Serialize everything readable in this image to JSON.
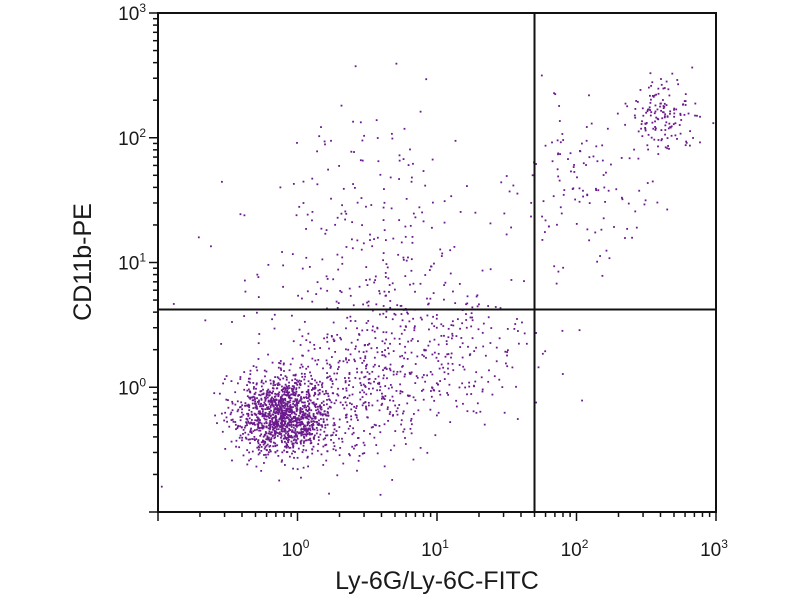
{
  "chart_data": {
    "type": "scatter",
    "title": "",
    "xlabel": "Ly-6G/Ly-6C-FITC",
    "ylabel": "CD11b-PE",
    "xscale": "log",
    "yscale": "log",
    "xlim": [
      0.1,
      1000
    ],
    "ylim": [
      0.1,
      1000
    ],
    "grid": false,
    "x_ticks": [
      {
        "base": "10",
        "exp": "0",
        "value": 1
      },
      {
        "base": "10",
        "exp": "1",
        "value": 10
      },
      {
        "base": "10",
        "exp": "2",
        "value": 100
      },
      {
        "base": "10",
        "exp": "3",
        "value": 1000
      }
    ],
    "y_ticks": [
      {
        "base": "10",
        "exp": "0",
        "value": 1
      },
      {
        "base": "10",
        "exp": "1",
        "value": 10
      },
      {
        "base": "10",
        "exp": "2",
        "value": 100
      },
      {
        "base": "10",
        "exp": "3",
        "value": 1000
      }
    ],
    "quadrant_gates": {
      "x": 50,
      "y": 4.2
    },
    "point_color": "#6a1a8c",
    "series": [
      {
        "populations": [
          {
            "center": [
              0.8,
              0.6
            ],
            "spread": [
              0.17,
              0.16
            ],
            "count": 1300
          },
          {
            "center": [
              2.5,
              0.8
            ],
            "spread": [
              0.35,
              0.25
            ],
            "count": 350
          },
          {
            "center": [
              7.0,
              2.0
            ],
            "spread": [
              0.45,
              0.35
            ],
            "count": 350
          },
          {
            "center": [
              3.0,
              15.0
            ],
            "spread": [
              0.45,
              0.5
            ],
            "count": 220
          },
          {
            "center": [
              120,
              40
            ],
            "spread": [
              0.25,
              0.35
            ],
            "count": 120
          },
          {
            "center": [
              400,
              150
            ],
            "spread": [
              0.12,
              0.14
            ],
            "count": 150
          }
        ]
      }
    ]
  }
}
